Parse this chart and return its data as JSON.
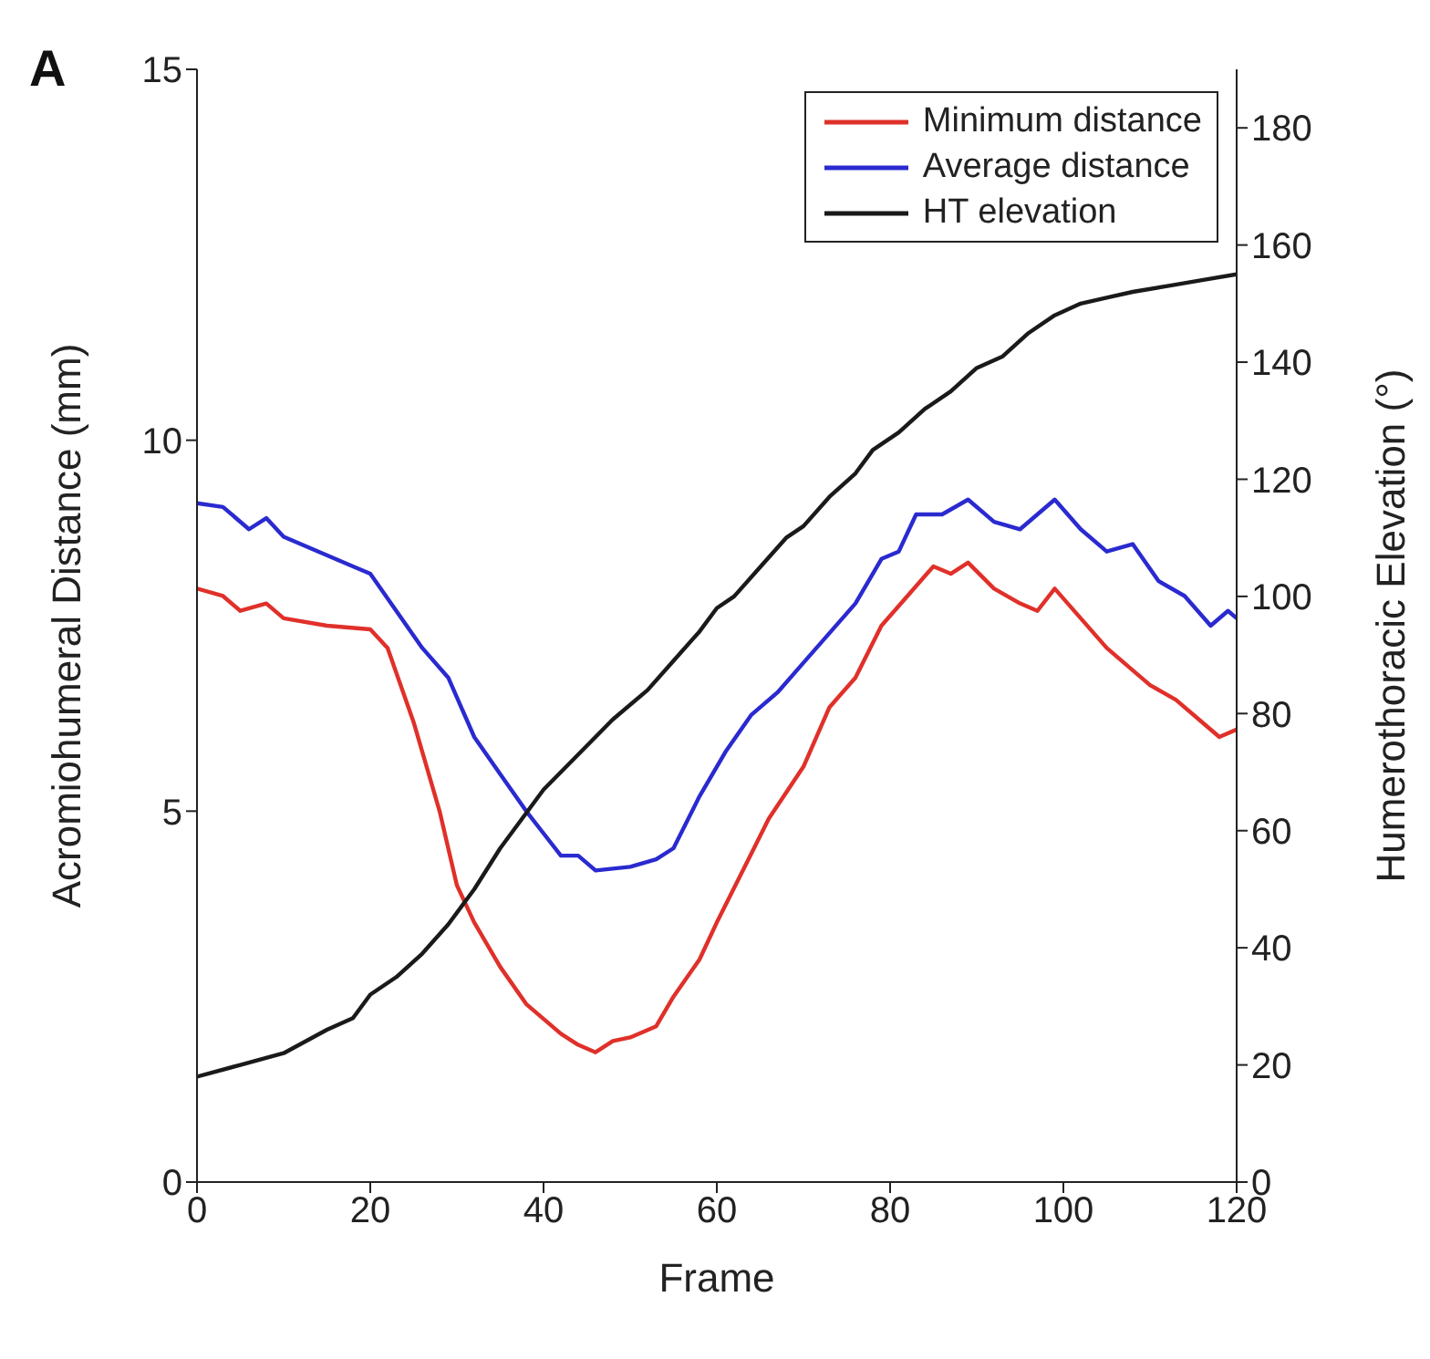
{
  "chart_data": {
    "type": "line",
    "xlabel": "Frame",
    "ylabel": "Acromiohumeral Distance (mm)",
    "y2label": "Humerothoracic Elevation (°)",
    "annotations": [
      "A"
    ],
    "xlim": [
      0,
      120
    ],
    "xticks": [
      0,
      20,
      40,
      60,
      80,
      100,
      120
    ],
    "ylim": [
      0,
      15
    ],
    "yticks": [
      0,
      5,
      10,
      15
    ],
    "y2lim": [
      0,
      190
    ],
    "y2ticks": [
      0,
      20,
      40,
      60,
      80,
      100,
      120,
      140,
      160,
      180
    ],
    "legend": "top right",
    "grid": false,
    "marker": "none",
    "line_style": "solid",
    "series": [
      {
        "name": "Minimum distance",
        "color": "#e0302a",
        "x": [
          0,
          3,
          5,
          8,
          10,
          15,
          20,
          22,
          25,
          28,
          30,
          32,
          35,
          38,
          40,
          42,
          44,
          46,
          48,
          50,
          53,
          55,
          58,
          60,
          63,
          66,
          70,
          73,
          76,
          79,
          82,
          85,
          87,
          89,
          92,
          95,
          97,
          99,
          102,
          105,
          108,
          110,
          113,
          116,
          118,
          120
        ],
        "values": [
          8.0,
          7.9,
          7.7,
          7.8,
          7.6,
          7.5,
          7.45,
          7.2,
          6.2,
          5.0,
          4.0,
          3.5,
          2.9,
          2.4,
          2.2,
          2.0,
          1.85,
          1.75,
          1.9,
          1.95,
          2.1,
          2.5,
          3.0,
          3.5,
          4.2,
          4.9,
          5.6,
          6.4,
          6.8,
          7.5,
          7.9,
          8.3,
          8.2,
          8.35,
          8.0,
          7.8,
          7.7,
          8.0,
          7.6,
          7.2,
          6.9,
          6.7,
          6.5,
          6.2,
          6.0,
          6.1
        ]
      },
      {
        "name": "Average distance",
        "color": "#2a2ad0",
        "x": [
          0,
          3,
          6,
          8,
          10,
          14,
          18,
          20,
          23,
          26,
          29,
          32,
          35,
          38,
          40,
          42,
          44,
          46,
          50,
          53,
          55,
          58,
          61,
          64,
          67,
          70,
          73,
          76,
          79,
          81,
          83,
          86,
          89,
          92,
          95,
          97,
          99,
          102,
          105,
          108,
          111,
          114,
          117,
          119,
          120
        ],
        "values": [
          9.15,
          9.1,
          8.8,
          8.95,
          8.7,
          8.5,
          8.3,
          8.2,
          7.7,
          7.2,
          6.8,
          6.0,
          5.5,
          5.0,
          4.7,
          4.4,
          4.4,
          4.2,
          4.25,
          4.35,
          4.5,
          5.2,
          5.8,
          6.3,
          6.6,
          7.0,
          7.4,
          7.8,
          8.4,
          8.5,
          9.0,
          9.0,
          9.2,
          8.9,
          8.8,
          9.0,
          9.2,
          8.8,
          8.5,
          8.6,
          8.1,
          7.9,
          7.5,
          7.7,
          7.6
        ]
      },
      {
        "name": "HT elevation",
        "color": "#1a1a1a",
        "axis": "y2",
        "x": [
          0,
          5,
          10,
          15,
          18,
          20,
          23,
          26,
          29,
          32,
          35,
          38,
          40,
          44,
          48,
          52,
          55,
          58,
          60,
          62,
          65,
          68,
          70,
          73,
          76,
          78,
          81,
          84,
          87,
          90,
          93,
          96,
          99,
          102,
          105,
          108,
          112,
          116,
          120
        ],
        "values": [
          18,
          20,
          22,
          26,
          28,
          32,
          35,
          39,
          44,
          50,
          57,
          63,
          67,
          73,
          79,
          84,
          89,
          94,
          98,
          100,
          105,
          110,
          112,
          117,
          121,
          125,
          128,
          132,
          135,
          139,
          141,
          145,
          148,
          150,
          151,
          152,
          153,
          154,
          155
        ]
      }
    ]
  }
}
